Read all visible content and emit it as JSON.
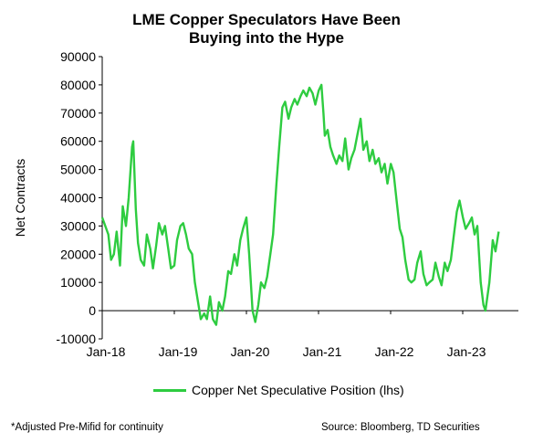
{
  "title": {
    "line1": "LME Copper Speculators Have Been",
    "line2": "Buying into the Hype"
  },
  "footnotes": {
    "left": "*Adjusted Pre-Mifid for continuity",
    "right": "Source: Bloomberg, TD Securities"
  },
  "colors": {
    "series": "#2ecc40",
    "axis": "#000000"
  },
  "chart_data": {
    "type": "line",
    "title": "LME Copper Speculators Have Been Buying into the Hype",
    "xlabel": "",
    "ylabel": "Net Contracts",
    "ylim": [
      -10000,
      90000
    ],
    "yticks": [
      -10000,
      0,
      10000,
      20000,
      30000,
      40000,
      50000,
      60000,
      70000,
      80000,
      90000
    ],
    "xticks": [
      "Jan-18",
      "Jan-19",
      "Jan-20",
      "Jan-21",
      "Jan-22",
      "Jan-23"
    ],
    "legend": "bottom",
    "grid": false,
    "series": [
      {
        "name": "Copper Net Speculative Position (lhs)",
        "color": "#2ecc40",
        "points": [
          [
            "2018-01-01",
            33000
          ],
          [
            "2018-02-01",
            27000
          ],
          [
            "2018-02-15",
            18000
          ],
          [
            "2018-03-01",
            20000
          ],
          [
            "2018-03-15",
            28000
          ],
          [
            "2018-04-01",
            16000
          ],
          [
            "2018-04-15",
            37000
          ],
          [
            "2018-05-01",
            30000
          ],
          [
            "2018-05-15",
            40000
          ],
          [
            "2018-06-01",
            58000
          ],
          [
            "2018-06-07",
            60000
          ],
          [
            "2018-06-20",
            36000
          ],
          [
            "2018-07-01",
            24000
          ],
          [
            "2018-07-15",
            18000
          ],
          [
            "2018-08-01",
            16000
          ],
          [
            "2018-08-15",
            27000
          ],
          [
            "2018-09-01",
            22000
          ],
          [
            "2018-09-15",
            15000
          ],
          [
            "2018-10-01",
            23000
          ],
          [
            "2018-10-15",
            31000
          ],
          [
            "2018-11-01",
            27000
          ],
          [
            "2018-11-15",
            30000
          ],
          [
            "2018-12-01",
            22000
          ],
          [
            "2018-12-15",
            15000
          ],
          [
            "2019-01-01",
            16000
          ],
          [
            "2019-01-15",
            25000
          ],
          [
            "2019-02-01",
            30000
          ],
          [
            "2019-02-15",
            31000
          ],
          [
            "2019-03-01",
            27000
          ],
          [
            "2019-03-15",
            22000
          ],
          [
            "2019-04-01",
            20000
          ],
          [
            "2019-04-15",
            10000
          ],
          [
            "2019-05-01",
            3000
          ],
          [
            "2019-05-15",
            -3000
          ],
          [
            "2019-06-01",
            -1000
          ],
          [
            "2019-06-15",
            -3000
          ],
          [
            "2019-07-01",
            5000
          ],
          [
            "2019-07-15",
            -3000
          ],
          [
            "2019-08-01",
            -5000
          ],
          [
            "2019-08-15",
            3000
          ],
          [
            "2019-09-01",
            0
          ],
          [
            "2019-09-15",
            5000
          ],
          [
            "2019-10-01",
            14000
          ],
          [
            "2019-10-15",
            13000
          ],
          [
            "2019-11-01",
            20000
          ],
          [
            "2019-11-15",
            16000
          ],
          [
            "2019-12-01",
            25000
          ],
          [
            "2019-12-15",
            29000
          ],
          [
            "2020-01-01",
            33000
          ],
          [
            "2020-01-15",
            20000
          ],
          [
            "2020-02-01",
            0
          ],
          [
            "2020-02-15",
            -4000
          ],
          [
            "2020-03-01",
            2000
          ],
          [
            "2020-03-15",
            10000
          ],
          [
            "2020-04-01",
            8000
          ],
          [
            "2020-04-15",
            12000
          ],
          [
            "2020-05-01",
            20000
          ],
          [
            "2020-05-15",
            27000
          ],
          [
            "2020-06-01",
            45000
          ],
          [
            "2020-06-15",
            58000
          ],
          [
            "2020-07-01",
            72000
          ],
          [
            "2020-07-15",
            74000
          ],
          [
            "2020-08-01",
            68000
          ],
          [
            "2020-08-15",
            72000
          ],
          [
            "2020-09-01",
            75000
          ],
          [
            "2020-09-15",
            73000
          ],
          [
            "2020-10-01",
            76000
          ],
          [
            "2020-10-15",
            78000
          ],
          [
            "2020-11-01",
            76000
          ],
          [
            "2020-11-15",
            79000
          ],
          [
            "2020-12-01",
            77000
          ],
          [
            "2020-12-15",
            73000
          ],
          [
            "2021-01-01",
            78000
          ],
          [
            "2021-01-15",
            80000
          ],
          [
            "2021-01-25",
            70000
          ],
          [
            "2021-02-01",
            62000
          ],
          [
            "2021-02-15",
            64000
          ],
          [
            "2021-03-01",
            58000
          ],
          [
            "2021-03-15",
            55000
          ],
          [
            "2021-04-01",
            52000
          ],
          [
            "2021-04-15",
            55000
          ],
          [
            "2021-05-01",
            53000
          ],
          [
            "2021-05-15",
            61000
          ],
          [
            "2021-06-01",
            50000
          ],
          [
            "2021-06-15",
            54000
          ],
          [
            "2021-07-01",
            57000
          ],
          [
            "2021-07-15",
            62000
          ],
          [
            "2021-08-01",
            68000
          ],
          [
            "2021-08-15",
            57000
          ],
          [
            "2021-09-01",
            60000
          ],
          [
            "2021-09-15",
            53000
          ],
          [
            "2021-10-01",
            57000
          ],
          [
            "2021-10-15",
            52000
          ],
          [
            "2021-11-01",
            54000
          ],
          [
            "2021-11-15",
            49000
          ],
          [
            "2021-12-01",
            52000
          ],
          [
            "2021-12-15",
            45000
          ],
          [
            "2022-01-01",
            52000
          ],
          [
            "2022-01-15",
            49000
          ],
          [
            "2022-02-01",
            38000
          ],
          [
            "2022-02-15",
            29000
          ],
          [
            "2022-03-01",
            26000
          ],
          [
            "2022-03-15",
            18000
          ],
          [
            "2022-04-01",
            11000
          ],
          [
            "2022-04-15",
            10000
          ],
          [
            "2022-05-01",
            11000
          ],
          [
            "2022-05-15",
            17000
          ],
          [
            "2022-06-01",
            21000
          ],
          [
            "2022-06-15",
            13000
          ],
          [
            "2022-07-01",
            9000
          ],
          [
            "2022-07-15",
            10000
          ],
          [
            "2022-08-01",
            11000
          ],
          [
            "2022-08-15",
            17000
          ],
          [
            "2022-09-01",
            12000
          ],
          [
            "2022-09-15",
            9000
          ],
          [
            "2022-10-01",
            17000
          ],
          [
            "2022-10-15",
            14000
          ],
          [
            "2022-11-01",
            18000
          ],
          [
            "2022-11-15",
            26000
          ],
          [
            "2022-12-01",
            35000
          ],
          [
            "2022-12-15",
            39000
          ],
          [
            "2023-01-01",
            33000
          ],
          [
            "2023-01-15",
            29000
          ],
          [
            "2023-02-01",
            31000
          ],
          [
            "2023-02-15",
            33000
          ],
          [
            "2023-03-01",
            27000
          ],
          [
            "2023-03-15",
            30000
          ],
          [
            "2023-04-01",
            10000
          ],
          [
            "2023-04-15",
            2000
          ],
          [
            "2023-04-25",
            0
          ],
          [
            "2023-05-15",
            10000
          ],
          [
            "2023-06-01",
            25000
          ],
          [
            "2023-06-15",
            21000
          ],
          [
            "2023-07-01",
            28000
          ]
        ]
      }
    ]
  }
}
